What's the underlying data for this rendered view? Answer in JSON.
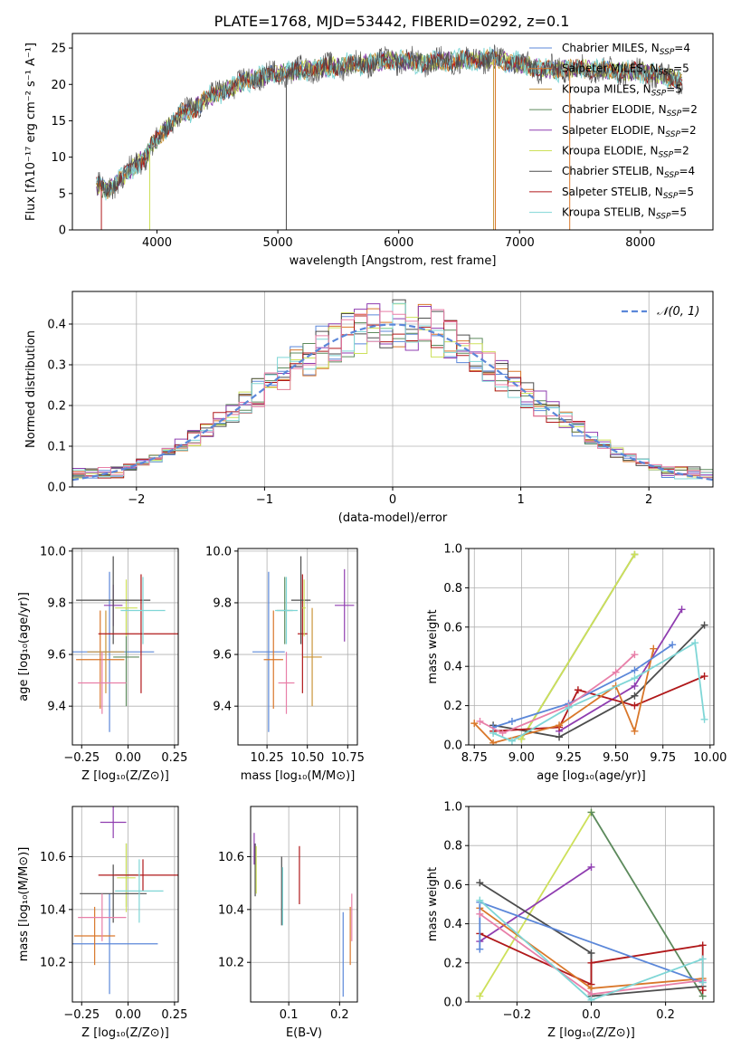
{
  "figure_title": "PLATE=1768, MJD=53442, FIBERID=0292, z=0.1",
  "colors": {
    "blue": "#5b87d9",
    "orange": "#d9772a",
    "gold": "#c9953a",
    "green": "#5c8a5c",
    "purple": "#8f3db0",
    "lime": "#cde05a",
    "gray": "#4d4d4d",
    "red": "#b0181a",
    "cyan": "#7fd6d6",
    "pink": "#e87fa8"
  },
  "chart_data": [
    {
      "id": "spectrum",
      "type": "line",
      "xlabel": "wavelength [Angstrom, rest frame]",
      "ylabel": "Flux [fλ10⁻¹⁷ erg cm⁻² s⁻¹ A⁻¹]",
      "xlim": [
        3300,
        8600
      ],
      "ylim": [
        0,
        27
      ],
      "xticks": [
        4000,
        5000,
        6000,
        7000,
        8000
      ],
      "yticks": [
        0,
        5,
        10,
        15,
        20,
        25
      ],
      "grid": false,
      "legend_position": "top-right",
      "continuum": {
        "x": [
          3500,
          3600,
          3700,
          3800,
          3900,
          3950,
          4000,
          4100,
          4200,
          4300,
          4400,
          4500,
          4600,
          4700,
          4800,
          5000,
          5200,
          5500,
          5800,
          6000,
          6200,
          6500,
          6800,
          7000,
          7200,
          7500,
          7800,
          8000,
          8300,
          8350
        ],
        "y": [
          6.2,
          5.5,
          7.0,
          8.5,
          10.0,
          11.5,
          12.5,
          14.5,
          16.0,
          16.5,
          18.0,
          18.8,
          19.5,
          20.3,
          20.8,
          21.5,
          22.0,
          22.5,
          23.0,
          23.3,
          23.0,
          23.3,
          23.5,
          22.8,
          22.0,
          22.2,
          21.8,
          21.8,
          20.7,
          20.6
        ]
      },
      "series": [
        {
          "name": "Chabrier MILES, N",
          "sub": "SSP",
          "count": "=4",
          "color": "#5b87d9"
        },
        {
          "name": "Salpeter MILES, N",
          "sub": "SSP",
          "count": "=5",
          "color": "#d9772a"
        },
        {
          "name": "Kroupa MILES, N",
          "sub": "SSP",
          "count": "=5",
          "color": "#c9953a"
        },
        {
          "name": "Chabrier ELODIE, N",
          "sub": "SSP",
          "count": "=2",
          "color": "#5c8a5c"
        },
        {
          "name": "Salpeter ELODIE, N",
          "sub": "SSP",
          "count": "=2",
          "color": "#8f3db0"
        },
        {
          "name": "Kroupa ELODIE, N",
          "sub": "SSP",
          "count": "=2",
          "color": "#cde05a"
        },
        {
          "name": "Chabrier STELIB, N",
          "sub": "SSP",
          "count": "=4",
          "color": "#4d4d4d"
        },
        {
          "name": "Salpeter STELIB, N",
          "sub": "SSP",
          "count": "=5",
          "color": "#b0181a"
        },
        {
          "name": "Kroupa STELIB, N",
          "sub": "SSP",
          "count": "=5",
          "color": "#7fd6d6"
        }
      ]
    },
    {
      "id": "residuals",
      "type": "histogram",
      "xlabel": "(data-model)/error",
      "ylabel": "Normed distribution",
      "xlim": [
        -2.5,
        2.5
      ],
      "ylim": [
        0,
        0.48
      ],
      "xticks": [
        -2,
        -1,
        0,
        1,
        2
      ],
      "yticks": [
        0.0,
        0.1,
        0.2,
        0.3,
        0.4
      ],
      "grid": true,
      "bin_width": 0.1,
      "legend_position": "top-right",
      "legend_label": "𝒩(0, 1)",
      "reference_curve": "normal(0,1)",
      "histogram_colors": [
        "#5b87d9",
        "#d9772a",
        "#5c8a5c",
        "#8f3db0",
        "#cde05a",
        "#4d4d4d",
        "#b0181a",
        "#7fd6d6",
        "#e87fa8"
      ]
    },
    {
      "id": "age_vs_Z",
      "type": "errorbar",
      "xlabel": "Z [log₁₀(Z/Z⊙)]",
      "ylabel": "age  [log₁₀(age/yr)]",
      "xlim": [
        -0.3,
        0.27
      ],
      "ylim": [
        9.25,
        10.01
      ],
      "xticks": [
        -0.25,
        0.0,
        0.25
      ],
      "xticklabels": [
        "−0.25",
        "0.00",
        "0.25"
      ],
      "yticks": [
        9.4,
        9.6,
        9.8,
        10.0
      ],
      "yticklabels": [
        "9.4",
        "9.6",
        "9.8",
        "10.0"
      ],
      "grid": true,
      "points": [
        {
          "x": -0.1,
          "xerr": 0.24,
          "y": 9.61,
          "yerr": 0.31,
          "color": "#5b87d9"
        },
        {
          "x": -0.15,
          "xerr": 0.13,
          "y": 9.58,
          "yerr": 0.19,
          "color": "#d9772a"
        },
        {
          "x": -0.12,
          "xerr": 0.1,
          "y": 9.61,
          "yerr": 0.16,
          "color": "#c9953a"
        },
        {
          "x": -0.01,
          "xerr": 0.07,
          "y": 9.59,
          "yerr": 0.19,
          "color": "#5c8a5c"
        },
        {
          "x": -0.08,
          "xerr": 0.05,
          "y": 9.79,
          "yerr": 0.08,
          "color": "#8f3db0"
        },
        {
          "x": -0.01,
          "xerr": 0.06,
          "y": 9.78,
          "yerr": 0.11,
          "color": "#cde05a"
        },
        {
          "x": -0.08,
          "xerr": 0.2,
          "y": 9.81,
          "yerr": 0.17,
          "color": "#4d4d4d"
        },
        {
          "x": 0.07,
          "xerr": 0.23,
          "y": 9.68,
          "yerr": 0.23,
          "color": "#b0181a"
        },
        {
          "x": 0.08,
          "xerr": 0.12,
          "y": 9.77,
          "yerr": 0.13,
          "color": "#7fd6d6"
        },
        {
          "x": -0.14,
          "xerr": 0.13,
          "y": 9.49,
          "yerr": 0.12,
          "color": "#e87fa8"
        }
      ]
    },
    {
      "id": "age_vs_mass",
      "type": "errorbar",
      "xlabel": "mass [log₁₀(M/M⊙)]",
      "ylabel": "",
      "xlim": [
        10.07,
        10.81
      ],
      "ylim": [
        9.25,
        10.01
      ],
      "xticks": [
        10.25,
        10.5,
        10.75
      ],
      "xticklabels": [
        "10.25",
        "10.50",
        "10.75"
      ],
      "yticks": [
        9.4,
        9.6,
        9.8,
        10.0
      ],
      "yticklabels": [
        "9.4",
        "9.6",
        "9.8",
        "10.0"
      ],
      "grid": true,
      "points": [
        {
          "x": 10.26,
          "xerr": 0.1,
          "y": 9.61,
          "yerr": 0.31,
          "color": "#5b87d9"
        },
        {
          "x": 10.29,
          "xerr": 0.06,
          "y": 9.58,
          "yerr": 0.19,
          "color": "#d9772a"
        },
        {
          "x": 10.36,
          "xerr": 0.05,
          "y": 9.77,
          "yerr": 0.13,
          "color": "#5c8a5c"
        },
        {
          "x": 10.53,
          "xerr": 0.06,
          "y": 9.59,
          "yerr": 0.19,
          "color": "#c9953a"
        },
        {
          "x": 10.73,
          "xerr": 0.06,
          "y": 9.79,
          "yerr": 0.14,
          "color": "#8f3db0"
        },
        {
          "x": 10.47,
          "xerr": 0.03,
          "y": 9.68,
          "yerr": 0.23,
          "color": "#b0181a"
        },
        {
          "x": 10.46,
          "xerr": 0.06,
          "y": 9.81,
          "yerr": 0.17,
          "color": "#4d4d4d"
        },
        {
          "x": 10.37,
          "xerr": 0.07,
          "y": 9.77,
          "yerr": 0.13,
          "color": "#7fd6d6"
        },
        {
          "x": 10.48,
          "xerr": 0.01,
          "y": 9.78,
          "yerr": 0.11,
          "color": "#cde05a"
        },
        {
          "x": 10.37,
          "xerr": 0.05,
          "y": 9.49,
          "yerr": 0.12,
          "color": "#e87fa8"
        }
      ]
    },
    {
      "id": "mass_weight_vs_age",
      "type": "line",
      "xlabel": "age  [log₁₀(age/yr)]",
      "ylabel": "mass weight",
      "xlim": [
        8.72,
        10.02
      ],
      "ylim": [
        0,
        1.0
      ],
      "xticks": [
        8.75,
        9.0,
        9.25,
        9.5,
        9.75,
        10.0
      ],
      "xticklabels": [
        "8.75",
        "9.00",
        "9.25",
        "9.50",
        "9.75",
        "10.00"
      ],
      "yticks": [
        0.0,
        0.2,
        0.4,
        0.6,
        0.8,
        1.0
      ],
      "yticklabels": [
        "0.0",
        "0.2",
        "0.4",
        "0.6",
        "0.8",
        "1.0"
      ],
      "grid": true,
      "series": [
        {
          "color": "#5c8a5c",
          "x": [
            9.0,
            9.6
          ],
          "y": [
            0.03,
            0.97
          ]
        },
        {
          "color": "#cde05a",
          "x": [
            9.0,
            9.6
          ],
          "y": [
            0.03,
            0.97
          ]
        },
        {
          "color": "#8f3db0",
          "x": [
            9.2,
            9.6,
            9.85
          ],
          "y": [
            0.07,
            0.3,
            0.69
          ]
        },
        {
          "color": "#4d4d4d",
          "x": [
            8.85,
            9.2,
            9.6,
            9.97
          ],
          "y": [
            0.1,
            0.04,
            0.25,
            0.61
          ]
        },
        {
          "color": "#b0181a",
          "x": [
            8.85,
            9.2,
            9.3,
            9.6,
            9.97
          ],
          "y": [
            0.07,
            0.09,
            0.28,
            0.2,
            0.35
          ]
        },
        {
          "color": "#d9772a",
          "x": [
            8.75,
            8.85,
            9.2,
            9.5,
            9.6,
            9.7
          ],
          "y": [
            0.11,
            0.01,
            0.1,
            0.3,
            0.07,
            0.49
          ]
        },
        {
          "color": "#5b87d9",
          "x": [
            8.85,
            8.95,
            9.25,
            9.6,
            9.8
          ],
          "y": [
            0.09,
            0.12,
            0.21,
            0.38,
            0.51
          ]
        },
        {
          "color": "#e87fa8",
          "x": [
            8.78,
            8.9,
            9.25,
            9.5,
            9.6
          ],
          "y": [
            0.12,
            0.06,
            0.2,
            0.37,
            0.46
          ]
        },
        {
          "color": "#7fd6d6",
          "x": [
            8.85,
            8.95,
            9.25,
            9.6,
            9.92,
            9.97
          ],
          "y": [
            0.06,
            0.02,
            0.19,
            0.34,
            0.52,
            0.13
          ]
        }
      ]
    },
    {
      "id": "mass_vs_Z",
      "type": "errorbar",
      "xlabel": "Z [log₁₀(Z/Z⊙)]",
      "ylabel": "mass [log₁₀(M/M⊙)]",
      "xlim": [
        -0.3,
        0.27
      ],
      "ylim": [
        10.05,
        10.79
      ],
      "xticks": [
        -0.25,
        0.0,
        0.25
      ],
      "xticklabels": [
        "−0.25",
        "0.00",
        "0.25"
      ],
      "yticks": [
        10.2,
        10.4,
        10.6
      ],
      "yticklabels": [
        "10.2",
        "10.4",
        "10.6"
      ],
      "grid": true,
      "points": [
        {
          "x": -0.1,
          "xerr": 0.26,
          "y": 10.27,
          "yerr": 0.19,
          "color": "#5b87d9"
        },
        {
          "x": -0.18,
          "xerr": 0.11,
          "y": 10.3,
          "yerr": 0.11,
          "color": "#d9772a"
        },
        {
          "x": -0.01,
          "xerr": 0.06,
          "y": 10.53,
          "yerr": 0.12,
          "color": "#5c8a5c"
        },
        {
          "x": -0.08,
          "xerr": 0.07,
          "y": 10.73,
          "yerr": 0.06,
          "color": "#8f3db0"
        },
        {
          "x": -0.01,
          "xerr": 0.05,
          "y": 10.52,
          "yerr": 0.13,
          "color": "#cde05a"
        },
        {
          "x": -0.08,
          "xerr": 0.18,
          "y": 10.46,
          "yerr": 0.11,
          "color": "#4d4d4d"
        },
        {
          "x": 0.08,
          "xerr": 0.24,
          "y": 10.53,
          "yerr": 0.06,
          "color": "#b0181a"
        },
        {
          "x": 0.06,
          "xerr": 0.13,
          "y": 10.47,
          "yerr": 0.12,
          "color": "#7fd6d6"
        },
        {
          "x": -0.14,
          "xerr": 0.13,
          "y": 10.37,
          "yerr": 0.09,
          "color": "#e87fa8"
        }
      ]
    },
    {
      "id": "mass_vs_EBV",
      "type": "errorbar",
      "xlabel": "E(B-V)",
      "ylabel": "",
      "xlim": [
        0.025,
        0.235
      ],
      "ylim": [
        10.05,
        10.79
      ],
      "xticks": [
        0.1,
        0.2
      ],
      "xticklabels": [
        "0.1",
        "0.2"
      ],
      "yticks": [
        10.2,
        10.4,
        10.6
      ],
      "yticklabels": [
        "10.2",
        "10.4",
        "10.6"
      ],
      "grid": true,
      "points": [
        {
          "x": 0.032,
          "y": 10.63,
          "yerr": 0.06,
          "color": "#8f3db0"
        },
        {
          "x": 0.034,
          "y": 10.55,
          "yerr": 0.1,
          "color": "#4d4d4d"
        },
        {
          "x": 0.036,
          "y": 10.55,
          "yerr": 0.09,
          "color": "#cde05a"
        },
        {
          "x": 0.086,
          "y": 10.47,
          "yerr": 0.13,
          "color": "#4d4d4d"
        },
        {
          "x": 0.088,
          "y": 10.45,
          "yerr": 0.11,
          "color": "#7fd6d6"
        },
        {
          "x": 0.121,
          "y": 10.53,
          "yerr": 0.11,
          "color": "#b0181a"
        },
        {
          "x": 0.207,
          "y": 10.23,
          "yerr": 0.16,
          "color": "#5b87d9"
        },
        {
          "x": 0.221,
          "y": 10.3,
          "yerr": 0.11,
          "color": "#d9772a"
        },
        {
          "x": 0.224,
          "y": 10.37,
          "yerr": 0.09,
          "color": "#e87fa8"
        }
      ]
    },
    {
      "id": "mass_weight_vs_Z",
      "type": "line",
      "xlabel": "Z [log₁₀(Z/Z⊙)]",
      "ylabel": "mass weight",
      "xlim": [
        -0.33,
        0.33
      ],
      "ylim": [
        0,
        1.0
      ],
      "xticks": [
        -0.2,
        0.0,
        0.2
      ],
      "xticklabels": [
        "−0.2",
        "0.0",
        "0.2"
      ],
      "yticks": [
        0.0,
        0.2,
        0.4,
        0.6,
        0.8,
        1.0
      ],
      "yticklabels": [
        "0.0",
        "0.2",
        "0.4",
        "0.6",
        "0.8",
        "1.0"
      ],
      "grid": true,
      "series": [
        {
          "color": "#cde05a",
          "x": [
            -0.3,
            0.0
          ],
          "y": [
            0.03,
            0.97
          ]
        },
        {
          "color": "#5c8a5c",
          "x": [
            0.0,
            0.3
          ],
          "y": [
            0.97,
            0.03
          ]
        },
        {
          "color": "#8f3db0",
          "x": [
            -0.3,
            0.0
          ],
          "y": [
            0.31,
            0.69
          ]
        },
        {
          "color": "#4d4d4d",
          "x": [
            -0.3,
            0.0,
            0.0,
            0.3
          ],
          "y": [
            0.61,
            0.25,
            0.03,
            0.08
          ]
        },
        {
          "color": "#b0181a",
          "x": [
            -0.3,
            0.0,
            0.0,
            0.3,
            0.3
          ],
          "y": [
            0.35,
            0.09,
            0.2,
            0.29,
            0.06
          ]
        },
        {
          "color": "#d9772a",
          "x": [
            -0.3,
            0.0,
            0.3
          ],
          "y": [
            0.48,
            0.07,
            0.12
          ]
        },
        {
          "color": "#5b87d9",
          "x": [
            -0.3,
            -0.3,
            0.3
          ],
          "y": [
            0.27,
            0.51,
            0.1
          ]
        },
        {
          "color": "#e87fa8",
          "x": [
            -0.3,
            0.0,
            0.3
          ],
          "y": [
            0.45,
            0.04,
            0.11
          ]
        },
        {
          "color": "#7fd6d6",
          "x": [
            -0.3,
            0.0,
            0.3,
            0.3
          ],
          "y": [
            0.52,
            0.01,
            0.22,
            0.1
          ]
        }
      ]
    }
  ]
}
